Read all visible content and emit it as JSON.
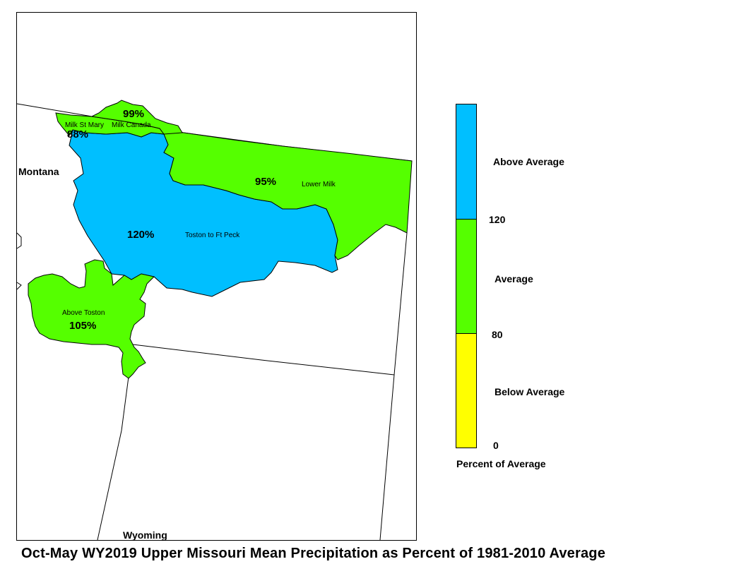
{
  "title": "Oct-May WY2019 Upper Missouri Mean Precipitation as Percent of 1981-2010 Average",
  "states": [
    "Montana",
    "Wyoming"
  ],
  "basins": [
    {
      "name": "Toston to Ft Peck",
      "percent": "120%",
      "category": "Above Average",
      "color": "#00bfff"
    },
    {
      "name": "Lower Milk",
      "percent": "95%",
      "category": "Average",
      "color": "#55ff00"
    },
    {
      "name": "Above Toston",
      "percent": "105%",
      "category": "Average",
      "color": "#55ff00"
    },
    {
      "name": "Milk St Mary",
      "percent": "88%",
      "category": "Average",
      "color": "#55ff00"
    },
    {
      "name": "Milk Canada",
      "percent": "99%",
      "category": "Average",
      "color": "#55ff00"
    }
  ],
  "legend": {
    "title": "Percent of Average",
    "classes": [
      {
        "label": "Above Average",
        "color": "#00bfff"
      },
      {
        "label": "Average",
        "color": "#55ff00"
      },
      {
        "label": "Below Average",
        "color": "#ffff00"
      }
    ],
    "breaks": [
      "120",
      "80",
      "0"
    ]
  }
}
